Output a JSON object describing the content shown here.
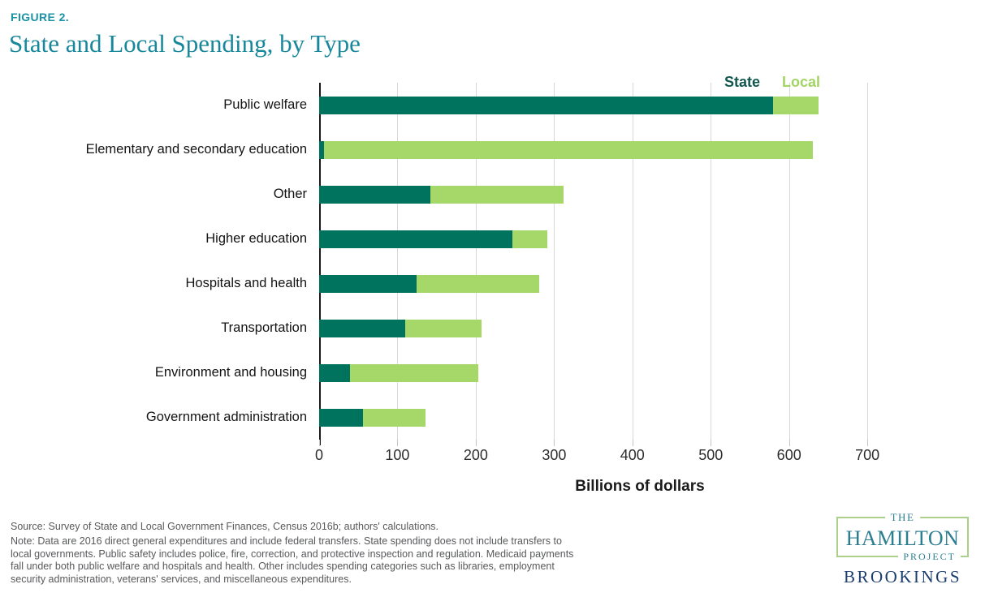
{
  "header": {
    "figure_label": "FIGURE 2.",
    "title": "State and Local Spending, by Type"
  },
  "chart_data": {
    "type": "bar",
    "orientation": "horizontal",
    "stacked": true,
    "title": "State and Local Spending, by Type",
    "categories": [
      "Public welfare",
      "Elementary and secondary education",
      "Other",
      "Higher education",
      "Hospitals and health",
      "Transportation",
      "Environment and housing",
      "Government administration"
    ],
    "series": [
      {
        "name": "State",
        "color": "#00735F",
        "label_color": "#10584F",
        "values": [
          580,
          6,
          142,
          247,
          124,
          110,
          39,
          56
        ]
      },
      {
        "name": "Local",
        "color": "#A5D769",
        "label_color": "#A3D465",
        "values": [
          58,
          624,
          170,
          44,
          157,
          97,
          164,
          80
        ]
      }
    ],
    "xlabel": "Billions of dollars",
    "ylabel": "",
    "x_ticks": [
      0,
      100,
      200,
      300,
      400,
      500,
      600,
      700
    ],
    "xlim": [
      0,
      733
    ],
    "grid": "vertical",
    "legend_position": "top-right",
    "units": "billions of dollars"
  },
  "footnote": {
    "source": "Source: Survey of State and Local Government Finances, Census 2016b; authors' calculations.",
    "note": "Note: Data are 2016 direct general expenditures and include federal transfers. State spending does not include transfers to local governments. Public safety includes police, fire, correction, and protective inspection and regulation. Medicaid payments fall under both public welfare and hospitals and health. Other includes spending categories such as libraries, employment security administration, veterans' services, and miscellaneous expenditures."
  },
  "logo": {
    "the": "THE",
    "hamilton": "HAMILTON",
    "project": "PROJECT",
    "brookings": "BROOKINGS"
  },
  "colors": {
    "accent_teal": "#17879B",
    "figure_label_teal": "#1A93A5",
    "state_bar": "#00735F",
    "local_bar": "#A5D769",
    "gridline": "#D8D8D8",
    "note_gray": "#58595B",
    "brookings_navy": "#1B3D6D",
    "hamilton_teal": "#2C7E90",
    "hamilton_border_green": "#ABD08C"
  }
}
